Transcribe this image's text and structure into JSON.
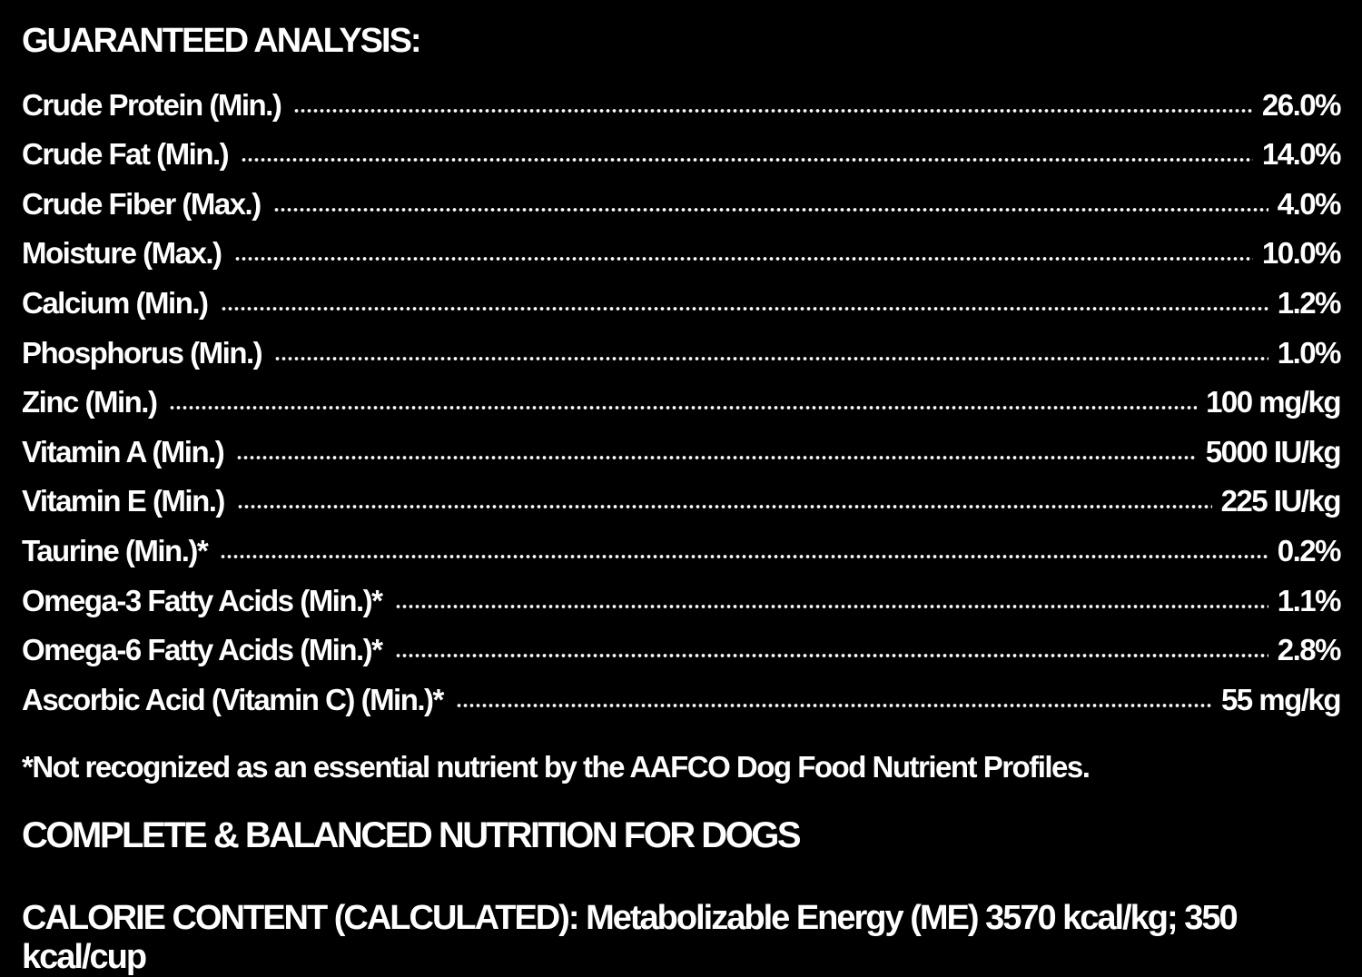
{
  "header": {
    "title": "GUARANTEED ANALYSIS:"
  },
  "rows": [
    {
      "label": "Crude Protein (Min.)",
      "value": "26.0%"
    },
    {
      "label": "Crude Fat (Min.)",
      "value": "14.0%"
    },
    {
      "label": "Crude Fiber (Max.)",
      "value": "4.0%"
    },
    {
      "label": "Moisture (Max.)",
      "value": "10.0%"
    },
    {
      "label": "Calcium (Min.)",
      "value": "1.2%"
    },
    {
      "label": "Phosphorus (Min.)",
      "value": "1.0%"
    },
    {
      "label": "Zinc (Min.)",
      "value": "100 mg/kg"
    },
    {
      "label": "Vitamin A (Min.)",
      "value": "5000 IU/kg"
    },
    {
      "label": "Vitamin E (Min.)",
      "value": "225 IU/kg"
    },
    {
      "label": "Taurine (Min.)*",
      "value": "0.2%"
    },
    {
      "label": "Omega-3 Fatty Acids (Min.)*",
      "value": "1.1%"
    },
    {
      "label": "Omega-6 Fatty Acids (Min.)*",
      "value": "2.8%"
    },
    {
      "label": "Ascorbic Acid (Vitamin C) (Min.)*",
      "value": "55 mg/kg"
    }
  ],
  "footnote": "*Not recognized as an essential nutrient by the AAFCO Dog Food Nutrient Profiles.",
  "statement": "COMPLETE & BALANCED NUTRITION FOR DOGS",
  "calorie": "CALORIE CONTENT (CALCULATED): Metabolizable Energy (ME) 3570 kcal/kg; 350 kcal/cup"
}
